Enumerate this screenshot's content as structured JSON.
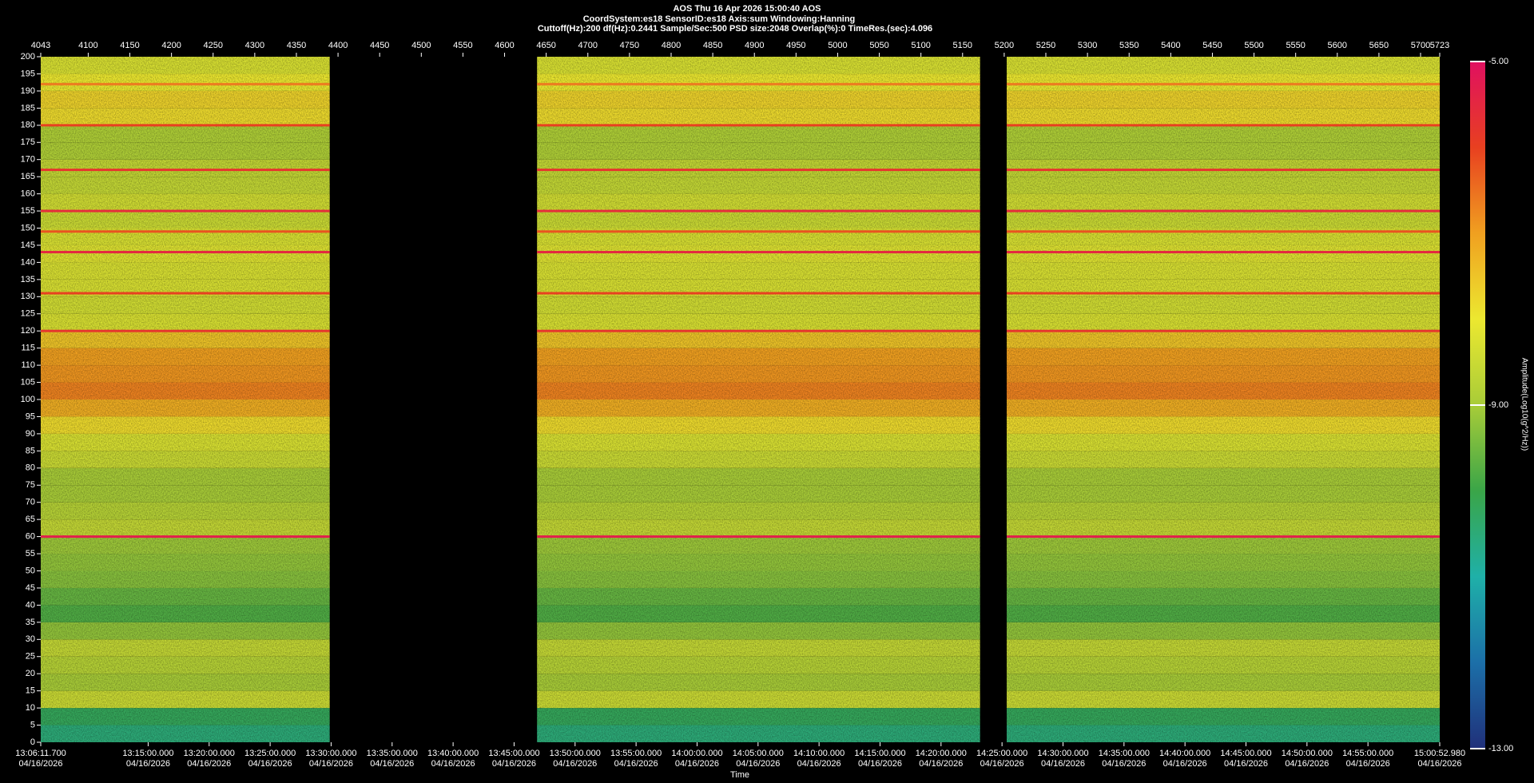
{
  "chart_data": {
    "type": "spectrogram",
    "title": "AOS  Thu 16 Apr 2026 15:00:40  AOS",
    "subtitle": "CoordSystem:es18    SensorID:es18     Axis:sum     Windowing:Hanning",
    "subtitle2": "Cuttoff(Hz):200     df(Hz):0.2441     Sample/Sec:500     PSD size:2048     Overlap(%):0     TimeRes.(sec):4.096",
    "xlabel": "Time",
    "zlabel": "Amplitude(Log10(g^2/Hz))",
    "xlim": [
      47171.7,
      54052.98
    ],
    "xticks": [
      {
        "value": 47171.7,
        "label": "13:06:11.700",
        "date": "04/16/2026"
      },
      {
        "value": 47700,
        "label": "13:15:00.000",
        "date": "04/16/2026"
      },
      {
        "value": 48000,
        "label": "13:20:00.000",
        "date": "04/16/2026"
      },
      {
        "value": 48300,
        "label": "13:25:00.000",
        "date": "04/16/2026"
      },
      {
        "value": 48600,
        "label": "13:30:00.000",
        "date": "04/16/2026"
      },
      {
        "value": 48900,
        "label": "13:35:00.000",
        "date": "04/16/2026"
      },
      {
        "value": 49200,
        "label": "13:40:00.000",
        "date": "04/16/2026"
      },
      {
        "value": 49500,
        "label": "13:45:00.000",
        "date": "04/16/2026"
      },
      {
        "value": 49800,
        "label": "13:50:00.000",
        "date": "04/16/2026"
      },
      {
        "value": 50100,
        "label": "13:55:00.000",
        "date": "04/16/2026"
      },
      {
        "value": 50400,
        "label": "14:00:00.000",
        "date": "04/16/2026"
      },
      {
        "value": 50700,
        "label": "14:05:00.000",
        "date": "04/16/2026"
      },
      {
        "value": 51000,
        "label": "14:10:00.000",
        "date": "04/16/2026"
      },
      {
        "value": 51300,
        "label": "14:15:00.000",
        "date": "04/16/2026"
      },
      {
        "value": 51600,
        "label": "14:20:00.000",
        "date": "04/16/2026"
      },
      {
        "value": 51900,
        "label": "14:25:00.000",
        "date": "04/16/2026"
      },
      {
        "value": 52200,
        "label": "14:30:00.000",
        "date": "04/16/2026"
      },
      {
        "value": 52500,
        "label": "14:35:00.000",
        "date": "04/16/2026"
      },
      {
        "value": 52800,
        "label": "14:40:00.000",
        "date": "04/16/2026"
      },
      {
        "value": 53100,
        "label": "14:45:00.000",
        "date": "04/16/2026"
      },
      {
        "value": 53400,
        "label": "14:50:00.000",
        "date": "04/16/2026"
      },
      {
        "value": 53700,
        "label": "14:55:00.000",
        "date": "04/16/2026"
      },
      {
        "value": 54052.98,
        "label": "15:00:52.980",
        "date": "04/16/2026"
      }
    ],
    "x2lim": [
      4043,
      5723
    ],
    "x2ticks": [
      4043,
      4100,
      4150,
      4200,
      4250,
      4300,
      4350,
      4400,
      4450,
      4500,
      4550,
      4600,
      4650,
      4700,
      4750,
      4800,
      4850,
      4900,
      4950,
      5000,
      5050,
      5100,
      5150,
      5200,
      5250,
      5300,
      5350,
      5400,
      5450,
      5500,
      5550,
      5600,
      5650,
      5700,
      5723
    ],
    "ylim": [
      0,
      200
    ],
    "yticks": [
      0,
      5,
      10,
      15,
      20,
      25,
      30,
      35,
      40,
      45,
      50,
      55,
      60,
      65,
      70,
      75,
      80,
      85,
      90,
      95,
      100,
      105,
      110,
      115,
      120,
      125,
      130,
      135,
      140,
      145,
      150,
      155,
      160,
      165,
      170,
      175,
      180,
      185,
      190,
      195,
      200
    ],
    "zlim": [
      -13,
      -5
    ],
    "zticks": [
      {
        "value": -13,
        "label": "-13.00"
      },
      {
        "value": -9,
        "label": "-9.00"
      },
      {
        "value": -5,
        "label": "-5.00"
      }
    ],
    "colormap": [
      "#20307a",
      "#1c6fa8",
      "#1fb0a8",
      "#3aa548",
      "#a8cc38",
      "#ece830",
      "#f0a020",
      "#e84020",
      "#e01060"
    ],
    "segments": [
      [
        4043,
        4390
      ],
      [
        4639,
        5171
      ],
      [
        5203,
        5723
      ]
    ],
    "freq_bins": [
      0,
      5,
      10,
      15,
      20,
      25,
      30,
      35,
      40,
      45,
      50,
      55,
      60,
      65,
      70,
      75,
      80,
      85,
      90,
      95,
      100,
      105,
      110,
      115,
      120,
      125,
      130,
      135,
      140,
      145,
      150,
      155,
      160,
      165,
      170,
      175,
      180,
      185,
      190,
      195,
      200
    ],
    "profile": [
      -10.5,
      -10.2,
      -8.5,
      -9.0,
      -8.8,
      -8.6,
      -9.2,
      -9.8,
      -9.6,
      -9.3,
      -9.2,
      -9.1,
      -8.6,
      -8.8,
      -9.0,
      -9.0,
      -8.5,
      -8.3,
      -7.8,
      -7.2,
      -6.7,
      -6.9,
      -7.0,
      -7.5,
      -8.3,
      -8.4,
      -8.3,
      -8.3,
      -8.2,
      -8.3,
      -8.5,
      -8.4,
      -8.6,
      -8.6,
      -8.9,
      -8.9,
      -7.8,
      -7.7,
      -8.0,
      -8.3
    ],
    "harmonics": [
      {
        "freq": 60,
        "amp": -5.3
      },
      {
        "freq": 120,
        "amp": -5.8
      },
      {
        "freq": 131,
        "amp": -6.0
      },
      {
        "freq": 143,
        "amp": -5.5
      },
      {
        "freq": 149,
        "amp": -6.2
      },
      {
        "freq": 155,
        "amp": -5.6
      },
      {
        "freq": 167,
        "amp": -5.8
      },
      {
        "freq": 180,
        "amp": -6.0
      },
      {
        "freq": 192,
        "amp": -6.6
      }
    ]
  }
}
